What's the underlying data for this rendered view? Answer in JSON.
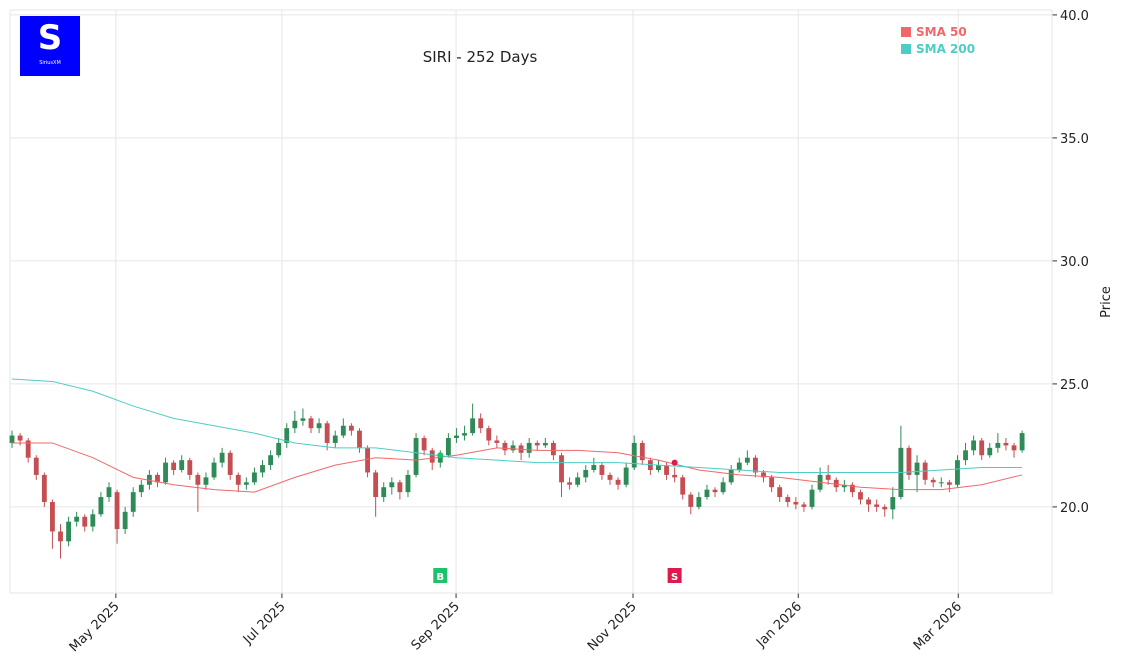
{
  "chart_data": {
    "type": "candlestick",
    "title": "SIRI - 252 Days",
    "logo_text": "SiriusXM",
    "ylabel": "Price",
    "xlim": [
      -0.5,
      257.4
    ],
    "ylim": [
      16.5,
      40.2
    ],
    "xticks": [
      {
        "value": 25.7,
        "label": "May 2025"
      },
      {
        "value": 66.8,
        "label": "Jul 2025"
      },
      {
        "value": 109.9,
        "label": "Sep 2025"
      },
      {
        "value": 153.7,
        "label": "Nov 2025"
      },
      {
        "value": 194.6,
        "label": "Jan 2026"
      },
      {
        "value": 234.2,
        "label": "Mar 2026"
      }
    ],
    "yticks": [
      {
        "value": 20,
        "label": "20.0"
      },
      {
        "value": 25,
        "label": "25.0"
      },
      {
        "value": 30,
        "label": "30.0"
      },
      {
        "value": 35,
        "label": "35.0"
      },
      {
        "value": 40,
        "label": "40.0"
      }
    ],
    "grid": true,
    "up_color": "#2e8b57",
    "down_color": "#c44e52",
    "x": [
      0,
      2,
      4,
      6,
      8,
      10,
      12,
      14,
      16,
      18,
      20,
      22,
      24,
      26,
      28,
      30,
      32,
      34,
      36,
      38,
      40,
      42,
      44,
      46,
      48,
      50,
      52,
      54,
      56,
      58,
      60,
      62,
      64,
      66,
      68,
      70,
      72,
      74,
      76,
      78,
      80,
      82,
      84,
      86,
      88,
      90,
      92,
      94,
      96,
      98,
      100,
      102,
      104,
      106,
      108,
      110,
      112,
      114,
      116,
      118,
      120,
      122,
      124,
      126,
      128,
      130,
      132,
      134,
      136,
      138,
      140,
      142,
      144,
      146,
      148,
      150,
      152,
      154,
      156,
      158,
      160,
      162,
      164,
      166,
      168,
      170,
      172,
      174,
      176,
      178,
      180,
      182,
      184,
      186,
      188,
      190,
      192,
      194,
      196,
      198,
      200,
      202,
      204,
      206,
      208,
      210,
      212,
      214,
      216,
      218,
      220,
      222,
      224,
      226,
      228,
      230,
      232,
      234,
      236,
      238,
      240,
      242,
      244,
      246,
      248,
      250
    ],
    "ohlc": [
      [
        22.6,
        23.1,
        22.4,
        22.9
      ],
      [
        22.9,
        23.0,
        22.5,
        22.7
      ],
      [
        22.7,
        22.8,
        21.8,
        22.0
      ],
      [
        22.0,
        22.1,
        21.1,
        21.3
      ],
      [
        21.3,
        21.4,
        20.0,
        20.2
      ],
      [
        20.2,
        20.3,
        18.3,
        19.0
      ],
      [
        19.0,
        19.3,
        17.9,
        18.6
      ],
      [
        18.6,
        19.6,
        18.4,
        19.4
      ],
      [
        19.4,
        19.8,
        19.2,
        19.6
      ],
      [
        19.6,
        19.7,
        19.0,
        19.2
      ],
      [
        19.2,
        19.9,
        19.0,
        19.7
      ],
      [
        19.7,
        20.6,
        19.6,
        20.4
      ],
      [
        20.4,
        21.0,
        20.2,
        20.8
      ],
      [
        20.6,
        20.7,
        18.5,
        19.1
      ],
      [
        19.1,
        20.0,
        18.9,
        19.8
      ],
      [
        19.8,
        20.8,
        19.6,
        20.6
      ],
      [
        20.6,
        21.1,
        20.4,
        20.9
      ],
      [
        20.9,
        21.5,
        20.7,
        21.3
      ],
      [
        21.3,
        21.4,
        20.8,
        21.0
      ],
      [
        21.0,
        22.0,
        20.9,
        21.8
      ],
      [
        21.8,
        21.9,
        21.3,
        21.5
      ],
      [
        21.5,
        22.1,
        21.4,
        21.9
      ],
      [
        21.9,
        22.0,
        21.1,
        21.3
      ],
      [
        21.3,
        21.4,
        19.8,
        20.9
      ],
      [
        20.9,
        21.4,
        20.7,
        21.2
      ],
      [
        21.2,
        22.0,
        21.1,
        21.8
      ],
      [
        21.8,
        22.4,
        21.6,
        22.2
      ],
      [
        22.2,
        22.3,
        21.1,
        21.3
      ],
      [
        21.3,
        21.4,
        20.6,
        20.9
      ],
      [
        20.9,
        21.2,
        20.7,
        21.0
      ],
      [
        21.0,
        21.6,
        20.9,
        21.4
      ],
      [
        21.4,
        21.9,
        21.2,
        21.7
      ],
      [
        21.7,
        22.3,
        21.5,
        22.1
      ],
      [
        22.1,
        22.8,
        22.0,
        22.6
      ],
      [
        22.6,
        23.4,
        22.4,
        23.2
      ],
      [
        23.2,
        23.9,
        23.0,
        23.5
      ],
      [
        23.5,
        24.0,
        23.3,
        23.6
      ],
      [
        23.6,
        23.7,
        23.0,
        23.2
      ],
      [
        23.2,
        23.6,
        23.0,
        23.4
      ],
      [
        23.4,
        23.5,
        22.3,
        22.6
      ],
      [
        22.6,
        23.1,
        22.4,
        22.9
      ],
      [
        22.9,
        23.6,
        22.8,
        23.3
      ],
      [
        23.3,
        23.4,
        22.9,
        23.1
      ],
      [
        23.1,
        23.2,
        22.2,
        22.4
      ],
      [
        22.4,
        22.5,
        21.2,
        21.4
      ],
      [
        21.4,
        21.5,
        19.6,
        20.4
      ],
      [
        20.4,
        21.0,
        20.2,
        20.8
      ],
      [
        20.8,
        21.2,
        20.5,
        21.0
      ],
      [
        21.0,
        21.1,
        20.3,
        20.6
      ],
      [
        20.6,
        21.5,
        20.4,
        21.3
      ],
      [
        21.3,
        23.0,
        21.2,
        22.8
      ],
      [
        22.8,
        22.9,
        22.1,
        22.3
      ],
      [
        22.3,
        22.4,
        21.5,
        21.8
      ],
      [
        21.8,
        22.3,
        21.6,
        22.1
      ],
      [
        22.1,
        23.0,
        22.0,
        22.8
      ],
      [
        22.8,
        23.2,
        22.6,
        22.9
      ],
      [
        22.9,
        23.3,
        22.7,
        23.0
      ],
      [
        23.0,
        24.2,
        22.9,
        23.6
      ],
      [
        23.6,
        23.8,
        23.0,
        23.2
      ],
      [
        23.2,
        23.3,
        22.5,
        22.7
      ],
      [
        22.7,
        22.9,
        22.4,
        22.6
      ],
      [
        22.6,
        22.7,
        22.1,
        22.3
      ],
      [
        22.3,
        22.7,
        22.2,
        22.5
      ],
      [
        22.5,
        22.6,
        21.9,
        22.2
      ],
      [
        22.2,
        22.8,
        22.0,
        22.6
      ],
      [
        22.6,
        22.7,
        22.3,
        22.5
      ],
      [
        22.5,
        22.8,
        22.4,
        22.6
      ],
      [
        22.6,
        22.7,
        21.9,
        22.1
      ],
      [
        22.1,
        22.2,
        20.4,
        21.0
      ],
      [
        21.0,
        21.2,
        20.7,
        20.9
      ],
      [
        20.9,
        21.4,
        20.8,
        21.2
      ],
      [
        21.2,
        21.7,
        21.0,
        21.5
      ],
      [
        21.5,
        22.0,
        21.4,
        21.7
      ],
      [
        21.7,
        21.8,
        21.1,
        21.3
      ],
      [
        21.3,
        21.4,
        20.9,
        21.1
      ],
      [
        21.1,
        21.2,
        20.7,
        20.9
      ],
      [
        20.9,
        21.8,
        20.8,
        21.6
      ],
      [
        21.6,
        22.9,
        21.5,
        22.6
      ],
      [
        22.6,
        22.7,
        21.7,
        21.9
      ],
      [
        21.9,
        22.0,
        21.3,
        21.5
      ],
      [
        21.5,
        21.9,
        21.4,
        21.7
      ],
      [
        21.7,
        21.8,
        21.1,
        21.3
      ],
      [
        21.3,
        21.6,
        21.0,
        21.2
      ],
      [
        21.2,
        21.3,
        20.3,
        20.5
      ],
      [
        20.5,
        20.6,
        19.7,
        20.0
      ],
      [
        20.0,
        20.6,
        19.9,
        20.4
      ],
      [
        20.4,
        20.9,
        20.3,
        20.7
      ],
      [
        20.7,
        20.8,
        20.4,
        20.6
      ],
      [
        20.6,
        21.2,
        20.5,
        21.0
      ],
      [
        21.0,
        21.7,
        20.9,
        21.5
      ],
      [
        21.5,
        22.0,
        21.4,
        21.8
      ],
      [
        21.8,
        22.3,
        21.7,
        22.0
      ],
      [
        22.0,
        22.1,
        21.2,
        21.4
      ],
      [
        21.4,
        21.5,
        21.0,
        21.2
      ],
      [
        21.2,
        21.3,
        20.6,
        20.8
      ],
      [
        20.8,
        20.9,
        20.2,
        20.4
      ],
      [
        20.4,
        20.5,
        20.0,
        20.2
      ],
      [
        20.2,
        20.4,
        19.9,
        20.1
      ],
      [
        20.1,
        20.2,
        19.8,
        20.0
      ],
      [
        20.0,
        20.9,
        19.9,
        20.7
      ],
      [
        20.7,
        21.6,
        20.6,
        21.3
      ],
      [
        21.3,
        21.7,
        20.9,
        21.1
      ],
      [
        21.1,
        21.2,
        20.6,
        20.8
      ],
      [
        20.8,
        21.1,
        20.6,
        20.9
      ],
      [
        20.9,
        21.0,
        20.4,
        20.6
      ],
      [
        20.6,
        20.7,
        20.1,
        20.3
      ],
      [
        20.3,
        20.4,
        19.8,
        20.1
      ],
      [
        20.1,
        20.3,
        19.8,
        20.0
      ],
      [
        20.0,
        20.1,
        19.6,
        19.9
      ],
      [
        19.9,
        20.8,
        19.5,
        20.4
      ],
      [
        20.4,
        23.3,
        20.3,
        22.4
      ],
      [
        22.4,
        22.5,
        21.1,
        21.3
      ],
      [
        21.3,
        22.1,
        20.6,
        21.8
      ],
      [
        21.8,
        21.9,
        20.9,
        21.1
      ],
      [
        21.1,
        21.2,
        20.8,
        21.0
      ],
      [
        21.0,
        21.2,
        20.8,
        21.0
      ],
      [
        21.0,
        21.1,
        20.6,
        20.9
      ],
      [
        20.9,
        22.1,
        20.8,
        21.9
      ],
      [
        21.9,
        22.6,
        21.7,
        22.3
      ],
      [
        22.3,
        22.9,
        22.1,
        22.7
      ],
      [
        22.7,
        22.8,
        21.9,
        22.1
      ],
      [
        22.1,
        22.6,
        22.0,
        22.4
      ],
      [
        22.4,
        23.0,
        22.2,
        22.6
      ],
      [
        22.6,
        22.8,
        22.3,
        22.5
      ],
      [
        22.5,
        22.6,
        22.0,
        22.3
      ],
      [
        22.3,
        23.1,
        22.2,
        23.0
      ]
    ],
    "series": [
      {
        "name": "SMA 50",
        "color": "#f0686a",
        "x": [
          0,
          10,
          20,
          30,
          40,
          50,
          60,
          70,
          80,
          90,
          100,
          110,
          120,
          130,
          140,
          150,
          160,
          170,
          180,
          190,
          200,
          210,
          220,
          230,
          240,
          250
        ],
        "values": [
          22.6,
          22.6,
          22.0,
          21.2,
          20.9,
          20.7,
          20.6,
          21.2,
          21.7,
          22.0,
          21.9,
          22.1,
          22.4,
          22.3,
          22.3,
          22.2,
          21.9,
          21.5,
          21.3,
          21.2,
          21.0,
          20.8,
          20.7,
          20.7,
          20.9,
          21.3
        ]
      },
      {
        "name": "SMA 200",
        "color": "#4ecdc4",
        "x": [
          0,
          10,
          20,
          30,
          40,
          50,
          60,
          70,
          80,
          90,
          100,
          110,
          120,
          130,
          140,
          150,
          160,
          170,
          180,
          190,
          200,
          210,
          220,
          230,
          240,
          250
        ],
        "values": [
          25.2,
          25.1,
          24.7,
          24.1,
          23.6,
          23.3,
          23.0,
          22.6,
          22.4,
          22.4,
          22.2,
          22.0,
          21.9,
          21.8,
          21.8,
          21.8,
          21.7,
          21.6,
          21.5,
          21.4,
          21.4,
          21.4,
          21.4,
          21.5,
          21.6,
          21.6
        ]
      }
    ],
    "signals": [
      {
        "label": "B",
        "x": 106,
        "price": 22.1,
        "color": "#1fc26b"
      },
      {
        "label": "S",
        "x": 164,
        "price": 21.8,
        "color": "#e0194c"
      }
    ]
  }
}
